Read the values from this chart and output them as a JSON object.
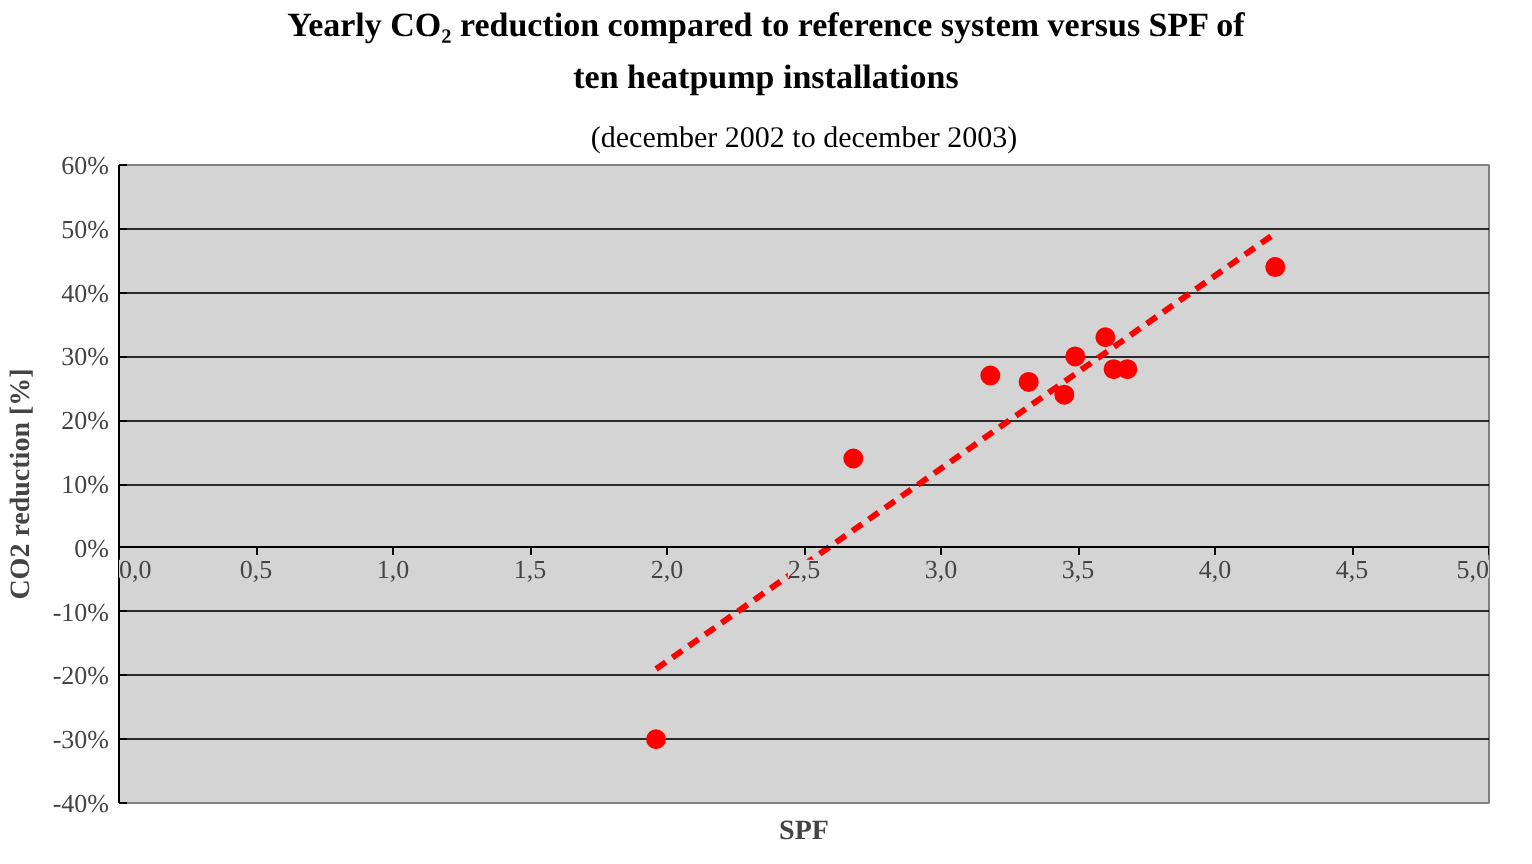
{
  "chart_data": {
    "type": "scatter",
    "title": "Yearly CO₂ reduction compared to reference system versus SPF of\nten heatpump installations",
    "subtitle": "(december 2002 to december 2003)",
    "xlabel": "SPF",
    "ylabel": "CO2 reduction [%]",
    "series": [
      {
        "color": "#ff0000",
        "marker": "circle",
        "x": [
          1.96,
          2.68,
          3.18,
          3.32,
          3.45,
          3.49,
          3.6,
          3.63,
          3.68,
          4.22
        ],
        "values": [
          -30,
          14,
          27,
          26,
          24,
          30,
          33,
          28,
          28,
          44
        ]
      },
      {
        "type": "line",
        "color": "#ff0000",
        "line_style": "dashed",
        "marker": "none",
        "x": [
          1.96,
          4.21
        ],
        "values": [
          -19,
          49
        ]
      }
    ],
    "xlim": [
      0,
      5
    ],
    "ylim": [
      -40,
      60
    ],
    "xticks": [
      {
        "value": 0,
        "label": "0,0"
      },
      {
        "value": 0.5,
        "label": "0,5"
      },
      {
        "value": 1,
        "label": "1,0"
      },
      {
        "value": 1.5,
        "label": "1,5"
      },
      {
        "value": 2,
        "label": "2,0"
      },
      {
        "value": 2.5,
        "label": "2,5"
      },
      {
        "value": 3,
        "label": "3,0"
      },
      {
        "value": 3.5,
        "label": "3,5"
      },
      {
        "value": 4,
        "label": "4,0"
      },
      {
        "value": 4.5,
        "label": "4,5"
      },
      {
        "value": 5,
        "label": "5,0"
      }
    ],
    "yticks": [
      {
        "value": -40,
        "label": "-40%"
      },
      {
        "value": -30,
        "label": "-30%"
      },
      {
        "value": -20,
        "label": "-20%"
      },
      {
        "value": -10,
        "label": "-10%"
      },
      {
        "value": 0,
        "label": "0%"
      },
      {
        "value": 10,
        "label": "10%"
      },
      {
        "value": 20,
        "label": "20%"
      },
      {
        "value": 30,
        "label": "30%"
      },
      {
        "value": 40,
        "label": "40%"
      },
      {
        "value": 50,
        "label": "50%"
      },
      {
        "value": 60,
        "label": "60%"
      }
    ],
    "grid": "y"
  }
}
